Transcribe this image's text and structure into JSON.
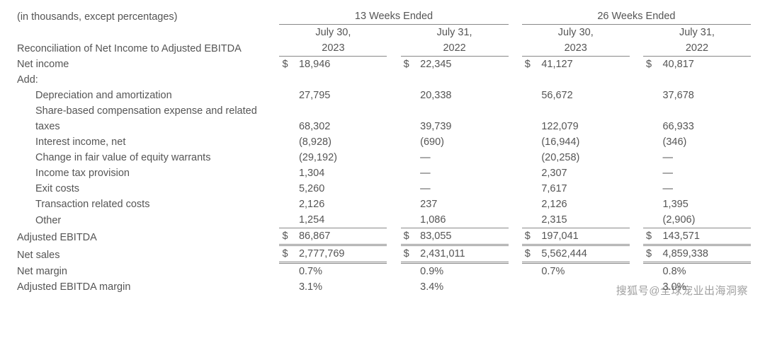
{
  "header": {
    "note": "(in thousands, except percentages)",
    "period1": "13 Weeks Ended",
    "period2": "26 Weeks Ended",
    "col1": "July 30, 2023",
    "col2": "July 31, 2022",
    "col3": "July 30, 2023",
    "col4": "July 31, 2022",
    "subtitle": "Reconciliation of Net Income to Adjusted EBITDA"
  },
  "currency": "$",
  "labels": {
    "net_income": "Net income",
    "add": "Add:",
    "dep_amort": "Depreciation and amortization",
    "sbc1": "Share-based compensation expense and related",
    "sbc2": "taxes",
    "interest": "Interest income, net",
    "fv_warrants": "Change in fair value of equity warrants",
    "tax_prov": "Income tax provision",
    "exit": "Exit costs",
    "txn": "Transaction related costs",
    "other": "Other",
    "adj_ebitda": "Adjusted EBITDA",
    "net_sales": "Net sales",
    "net_margin": "Net margin",
    "adj_margin": "Adjusted EBITDA margin"
  },
  "rows": {
    "net_income": [
      "18,946",
      "22,345",
      "41,127",
      "40,817"
    ],
    "dep_amort": [
      "27,795",
      "20,338",
      "56,672",
      "37,678"
    ],
    "sbc": [
      "68,302",
      "39,739",
      "122,079",
      "66,933"
    ],
    "interest": [
      "(8,928)",
      "(690)",
      "(16,944)",
      "(346)"
    ],
    "fv_warrants": [
      "(29,192)",
      "—",
      "(20,258)",
      "—"
    ],
    "tax_prov": [
      "1,304",
      "—",
      "2,307",
      "—"
    ],
    "exit": [
      "5,260",
      "—",
      "7,617",
      "—"
    ],
    "txn": [
      "2,126",
      "237",
      "2,126",
      "1,395"
    ],
    "other": [
      "1,254",
      "1,086",
      "2,315",
      "(2,906)"
    ],
    "adj_ebitda": [
      "86,867",
      "83,055",
      "197,041",
      "143,571"
    ],
    "net_sales": [
      "2,777,769",
      "2,431,011",
      "5,562,444",
      "4,859,338"
    ],
    "net_margin": [
      "0.7%",
      "0.9%",
      "0.7%",
      "0.8%"
    ],
    "adj_margin": [
      "3.1%",
      "3.4%",
      "",
      "3.0%"
    ]
  },
  "watermark": "搜狐号@全球宠业出海洞察"
}
